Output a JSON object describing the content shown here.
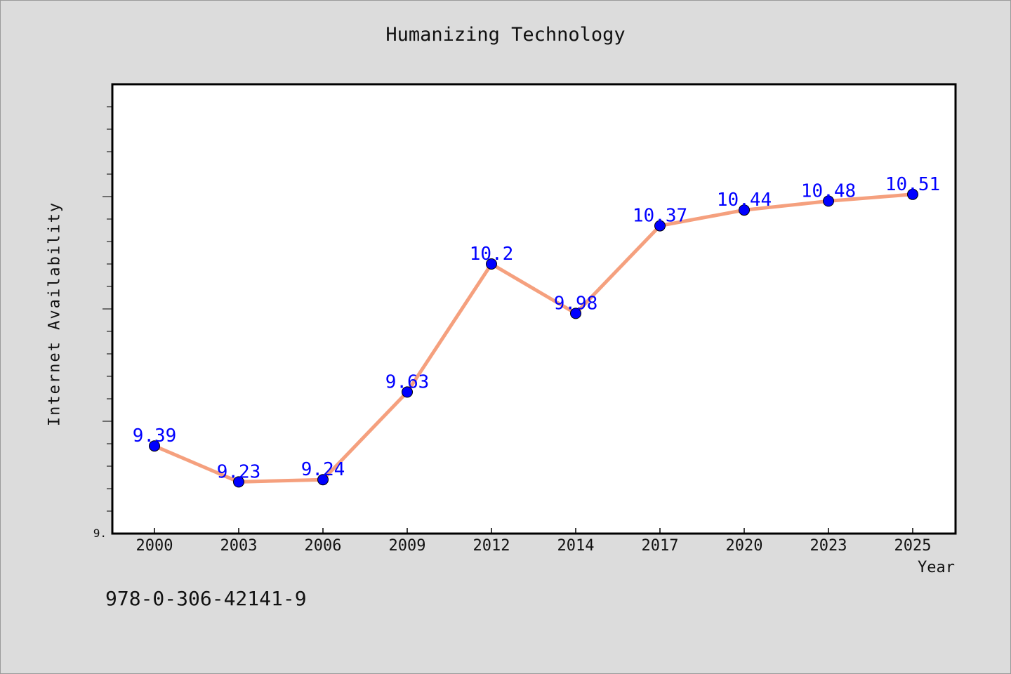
{
  "chart_data": {
    "type": "line",
    "title": "Humanizing Technology",
    "xlabel": "Year",
    "ylabel": "Internet Availability",
    "categories": [
      "2000",
      "2003",
      "2006",
      "2009",
      "2012",
      "2014",
      "2017",
      "2020",
      "2023",
      "2025"
    ],
    "series": [
      {
        "values": [
          9.39,
          9.23,
          9.24,
          9.63,
          10.2,
          9.98,
          10.37,
          10.44,
          10.48,
          10.51
        ]
      }
    ],
    "data_labels": [
      "9.39",
      "9.23",
      "9.24",
      "9.63",
      "10.2",
      "9.98",
      "10.37",
      "10.44",
      "10.48",
      "10.51"
    ],
    "ytick_labels": [
      "9."
    ],
    "ylim": [
      9.0,
      11.0
    ],
    "grid": false,
    "colors": {
      "line": "#f5a07e",
      "marker": "#0000ff",
      "data_label": "#0000ff",
      "plot_background": "#ffffff",
      "page_background": "#dcdcdc"
    }
  },
  "footer": {
    "isbn": "978-0-306-42141-9"
  }
}
